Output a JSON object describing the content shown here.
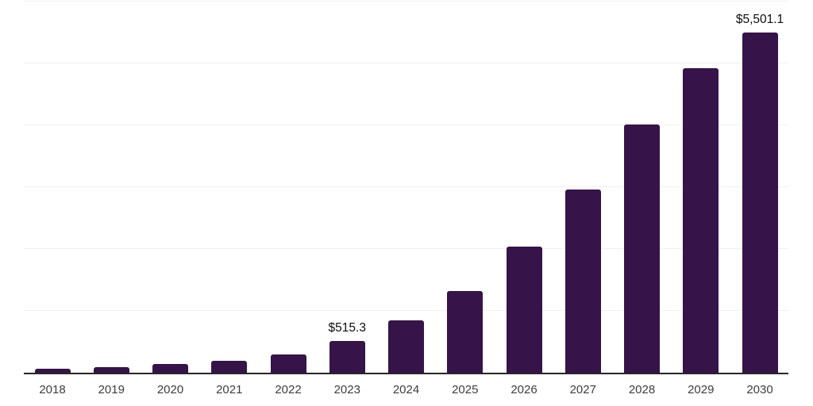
{
  "chart_data": {
    "type": "bar",
    "categories": [
      "2018",
      "2019",
      "2020",
      "2021",
      "2022",
      "2023",
      "2024",
      "2025",
      "2026",
      "2027",
      "2028",
      "2029",
      "2030"
    ],
    "values": [
      70,
      95,
      135,
      190,
      300,
      515.3,
      840,
      1320,
      2035,
      2960,
      4015,
      4925,
      5501.1
    ],
    "labels": [
      "",
      "",
      "",
      "",
      "",
      "$515.3",
      "",
      "",
      "",
      "",
      "",
      "",
      "$5,501.1"
    ],
    "title": "",
    "xlabel": "",
    "ylabel": "",
    "ylim": [
      0,
      6000
    ],
    "gridline_interval": 1000,
    "grid_visible": true,
    "legend": null,
    "colors": {
      "bar": "#361349",
      "gridline": "#f0f0f1",
      "axis_line": "#262626",
      "data_label": "#0d0d0d",
      "tick_label": "#3d3d3d",
      "background": "#ffffff"
    }
  }
}
